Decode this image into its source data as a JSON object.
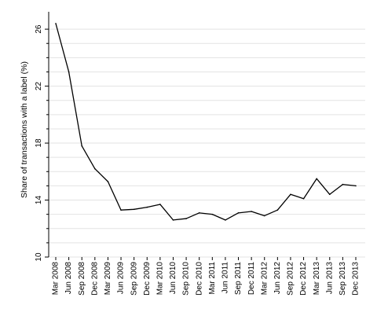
{
  "chart_data": {
    "type": "line",
    "title": "",
    "xlabel": "",
    "ylabel": "Share of transactions with a label (%)",
    "ylim": [
      10,
      27
    ],
    "yticks": [
      10,
      14,
      18,
      22,
      26
    ],
    "grid": true,
    "legend": "none",
    "x": [
      "Mar 2008",
      "Jun 2008",
      "Sep 2008",
      "Dec 2008",
      "Mar 2009",
      "Jun 2009",
      "Sep 2009",
      "Dec 2009",
      "Mar 2010",
      "Jun 2010",
      "Sep 2010",
      "Dec 2010",
      "Mar 2011",
      "Jun 2011",
      "Sep 2011",
      "Dec 2011",
      "Mar 2012",
      "Jun 2012",
      "Sep 2012",
      "Dec 2012",
      "Mar 2013",
      "Jun 2013",
      "Sep 2013",
      "Dec 2013"
    ],
    "series": [
      {
        "values": [
          26.4,
          23.0,
          17.8,
          16.2,
          15.3,
          13.3,
          13.35,
          13.5,
          13.7,
          12.6,
          12.7,
          13.1,
          13.0,
          12.6,
          13.1,
          13.2,
          12.9,
          13.3,
          14.4,
          14.1,
          15.5,
          14.4,
          15.1,
          15.0
        ]
      }
    ],
    "colors": {
      "line": "#000000",
      "grid": "#e3e3e3",
      "axis": "#000000"
    }
  }
}
